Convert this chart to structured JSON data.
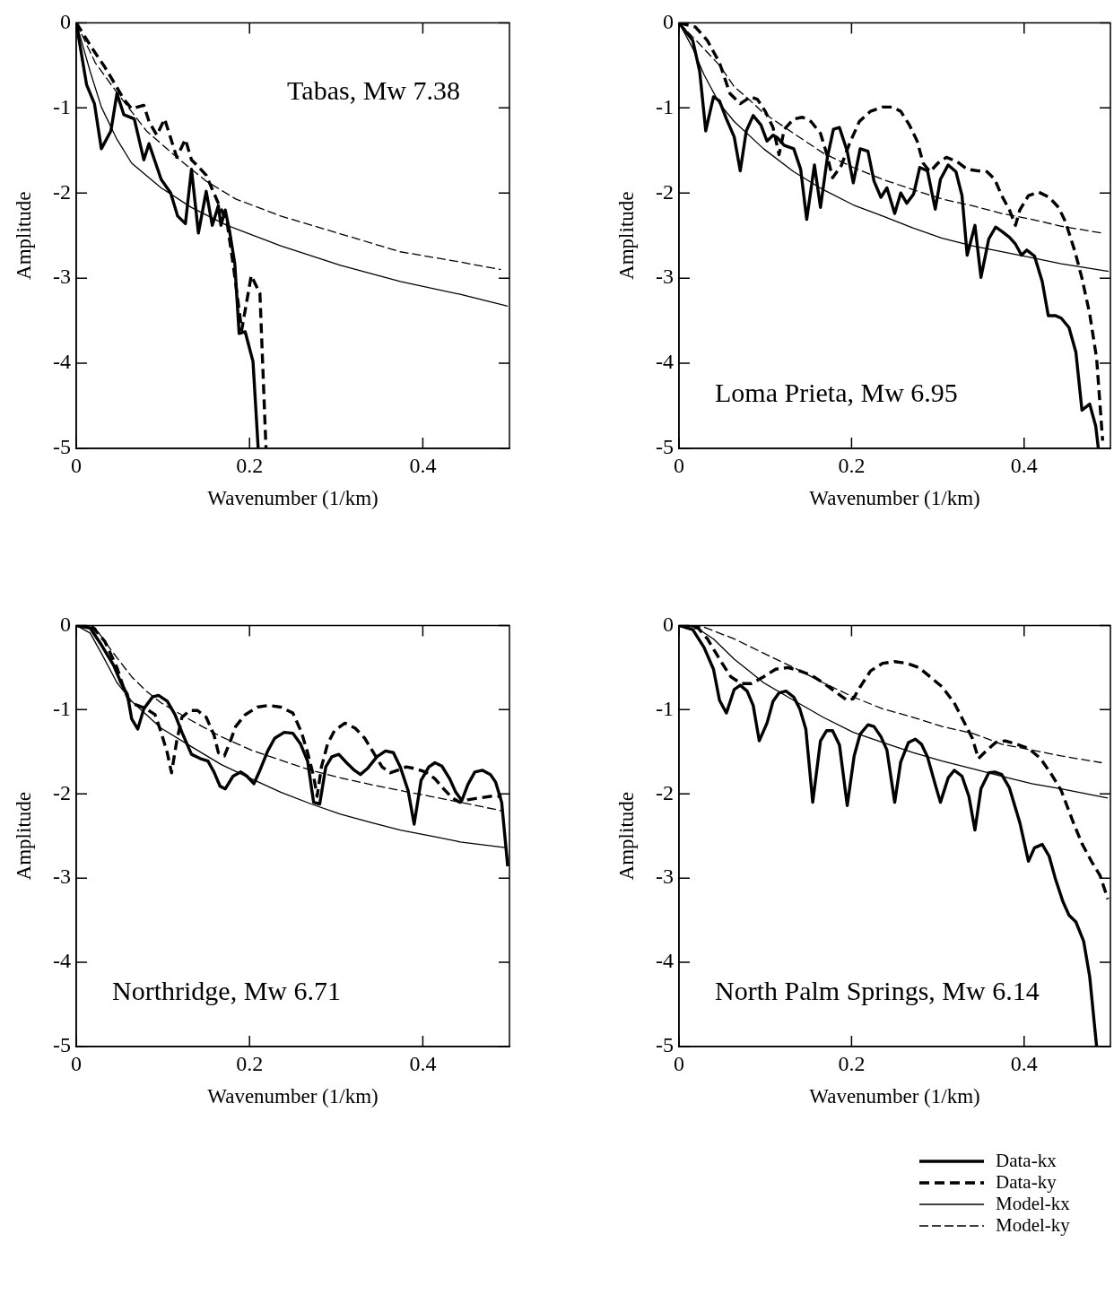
{
  "chart_data": [
    {
      "type": "line",
      "title": "Tabas, Mw 7.38",
      "xlabel": "Wavenumber (1/km)",
      "ylabel": "Amplitude",
      "xlim": [
        0,
        0.5
      ],
      "xticks": [
        0,
        0.2,
        0.4
      ],
      "ylim": [
        -5,
        0
      ],
      "yticks": [
        0,
        -1,
        -2,
        -3,
        -4,
        -5
      ],
      "marker": "none",
      "series": [
        {
          "color": "#000000",
          "line_style": "solid",
          "x": [
            0,
            0.012,
            0.021,
            0.029,
            0.04,
            0.047,
            0.055,
            0.067,
            0.078,
            0.084,
            0.098,
            0.109,
            0.117,
            0.126,
            0.133,
            0.141,
            0.15,
            0.157,
            0.164,
            0.167,
            0.172,
            0.177,
            0.183,
            0.188,
            0.195,
            0.204,
            0.21
          ],
          "values": [
            0,
            -0.73,
            -0.95,
            -1.48,
            -1.27,
            -0.83,
            -1.08,
            -1.13,
            -1.61,
            -1.42,
            -1.84,
            -2.0,
            -2.27,
            -2.36,
            -1.72,
            -2.47,
            -1.98,
            -2.38,
            -2.15,
            -2.38,
            -2.2,
            -2.45,
            -2.83,
            -3.65,
            -3.63,
            -3.98,
            -5
          ]
        },
        {
          "color": "#000000",
          "line_style": "dashed",
          "x": [
            0,
            0.019,
            0.033,
            0.047,
            0.055,
            0.064,
            0.078,
            0.084,
            0.093,
            0.102,
            0.116,
            0.126,
            0.133,
            0.14,
            0.15,
            0.155,
            0.164,
            0.174,
            0.181,
            0.191,
            0.202,
            0.212,
            0.219
          ],
          "values": [
            0,
            -0.31,
            -0.52,
            -0.76,
            -0.9,
            -1.01,
            -0.97,
            -1.16,
            -1.32,
            -1.13,
            -1.58,
            -1.37,
            -1.61,
            -1.68,
            -1.79,
            -1.91,
            -2.12,
            -2.34,
            -2.83,
            -3.61,
            -2.97,
            -3.18,
            -5
          ]
        },
        {
          "color": "#000000",
          "line_style": "solid",
          "x": [
            0,
            0.016,
            0.029,
            0.047,
            0.064,
            0.098,
            0.133,
            0.174,
            0.236,
            0.305,
            0.374,
            0.443,
            0.498
          ],
          "values": [
            0,
            -0.57,
            -0.99,
            -1.37,
            -1.65,
            -1.94,
            -2.17,
            -2.38,
            -2.62,
            -2.85,
            -3.04,
            -3.19,
            -3.33
          ]
        },
        {
          "color": "#000000",
          "line_style": "dashed",
          "x": [
            0,
            0.022,
            0.047,
            0.081,
            0.116,
            0.15,
            0.184,
            0.236,
            0.305,
            0.374,
            0.443,
            0.49
          ],
          "values": [
            0,
            -0.47,
            -0.82,
            -1.27,
            -1.58,
            -1.86,
            -2.07,
            -2.27,
            -2.48,
            -2.69,
            -2.81,
            -2.9
          ]
        }
      ]
    },
    {
      "type": "line",
      "title": "Loma Prieta, Mw 6.95",
      "xlabel": "Wavenumber (1/km)",
      "ylabel": "Amplitude",
      "xlim": [
        0,
        0.5
      ],
      "xticks": [
        0,
        0.2,
        0.4
      ],
      "ylim": [
        -5,
        0
      ],
      "yticks": [
        0,
        -1,
        -2,
        -3,
        -4,
        -5
      ],
      "marker": "none",
      "series": [
        {
          "color": "#000000",
          "line_style": "solid",
          "x": [
            0,
            0.016,
            0.024,
            0.031,
            0.04,
            0.047,
            0.055,
            0.064,
            0.071,
            0.078,
            0.086,
            0.095,
            0.102,
            0.109,
            0.114,
            0.122,
            0.133,
            0.141,
            0.148,
            0.157,
            0.164,
            0.172,
            0.179,
            0.186,
            0.195,
            0.202,
            0.21,
            0.219,
            0.226,
            0.234,
            0.241,
            0.25,
            0.257,
            0.264,
            0.272,
            0.279,
            0.288,
            0.297,
            0.303,
            0.312,
            0.321,
            0.328,
            0.334,
            0.343,
            0.35,
            0.359,
            0.367,
            0.374,
            0.383,
            0.39,
            0.397,
            0.403,
            0.412,
            0.421,
            0.428,
            0.436,
            0.443,
            0.452,
            0.46,
            0.467,
            0.476,
            0.483,
            0.486
          ],
          "values": [
            0,
            -0.21,
            -0.57,
            -1.27,
            -0.87,
            -0.92,
            -1.13,
            -1.34,
            -1.74,
            -1.27,
            -1.09,
            -1.2,
            -1.39,
            -1.32,
            -1.35,
            -1.44,
            -1.48,
            -1.72,
            -2.31,
            -1.67,
            -2.17,
            -1.58,
            -1.25,
            -1.23,
            -1.51,
            -1.88,
            -1.48,
            -1.51,
            -1.86,
            -2.05,
            -1.94,
            -2.24,
            -2.0,
            -2.12,
            -2.01,
            -1.7,
            -1.74,
            -2.19,
            -1.84,
            -1.67,
            -1.75,
            -2.03,
            -2.73,
            -2.38,
            -2.99,
            -2.54,
            -2.4,
            -2.45,
            -2.52,
            -2.6,
            -2.73,
            -2.67,
            -2.74,
            -3.04,
            -3.44,
            -3.44,
            -3.47,
            -3.58,
            -3.87,
            -4.55,
            -4.48,
            -4.74,
            -5
          ]
        },
        {
          "color": "#000000",
          "line_style": "dashed",
          "x": [
            0,
            0.019,
            0.033,
            0.047,
            0.059,
            0.071,
            0.083,
            0.091,
            0.1,
            0.109,
            0.116,
            0.122,
            0.133,
            0.143,
            0.153,
            0.164,
            0.171,
            0.178,
            0.188,
            0.198,
            0.209,
            0.222,
            0.236,
            0.247,
            0.257,
            0.267,
            0.276,
            0.283,
            0.291,
            0.3,
            0.31,
            0.322,
            0.334,
            0.347,
            0.357,
            0.366,
            0.374,
            0.383,
            0.39,
            0.395,
            0.405,
            0.417,
            0.429,
            0.44,
            0.448,
            0.459,
            0.467,
            0.476,
            0.484,
            0.491
          ],
          "values": [
            0,
            -0.05,
            -0.21,
            -0.47,
            -0.83,
            -0.95,
            -0.87,
            -0.9,
            -1.04,
            -1.23,
            -1.55,
            -1.25,
            -1.13,
            -1.11,
            -1.16,
            -1.3,
            -1.53,
            -1.82,
            -1.68,
            -1.41,
            -1.16,
            -1.04,
            -0.99,
            -0.99,
            -1.04,
            -1.2,
            -1.39,
            -1.65,
            -1.75,
            -1.65,
            -1.58,
            -1.63,
            -1.72,
            -1.74,
            -1.75,
            -1.84,
            -2.03,
            -2.2,
            -2.38,
            -2.2,
            -2.03,
            -1.99,
            -2.05,
            -2.17,
            -2.34,
            -2.69,
            -3.0,
            -3.42,
            -3.94,
            -4.91
          ]
        },
        {
          "color": "#000000",
          "line_style": "solid",
          "x": [
            0,
            0.016,
            0.029,
            0.047,
            0.064,
            0.098,
            0.133,
            0.167,
            0.202,
            0.236,
            0.271,
            0.305,
            0.34,
            0.374,
            0.409,
            0.443,
            0.498
          ],
          "values": [
            0,
            -0.3,
            -0.61,
            -0.95,
            -1.16,
            -1.48,
            -1.75,
            -1.96,
            -2.14,
            -2.27,
            -2.41,
            -2.53,
            -2.62,
            -2.69,
            -2.76,
            -2.83,
            -2.92
          ]
        },
        {
          "color": "#000000",
          "line_style": "dashed",
          "x": [
            0,
            0.022,
            0.047,
            0.064,
            0.081,
            0.098,
            0.133,
            0.167,
            0.202,
            0.236,
            0.271,
            0.305,
            0.34,
            0.374,
            0.409,
            0.443,
            0.49
          ],
          "values": [
            0,
            -0.23,
            -0.5,
            -0.75,
            -0.9,
            -1.06,
            -1.3,
            -1.53,
            -1.7,
            -1.84,
            -1.96,
            -2.07,
            -2.15,
            -2.24,
            -2.31,
            -2.39,
            -2.47
          ]
        }
      ]
    },
    {
      "type": "line",
      "title": "Northridge, Mw 6.71",
      "xlabel": "Wavenumber (1/km)",
      "ylabel": "Amplitude",
      "xlim": [
        0,
        0.5
      ],
      "xticks": [
        0,
        0.2,
        0.4
      ],
      "ylim": [
        -5,
        0
      ],
      "yticks": [
        0,
        -1,
        -2,
        -3,
        -4,
        -5
      ],
      "marker": "none",
      "series": [
        {
          "color": "#000000",
          "line_style": "solid",
          "x": [
            0,
            0.016,
            0.029,
            0.043,
            0.052,
            0.059,
            0.064,
            0.071,
            0.078,
            0.088,
            0.095,
            0.105,
            0.114,
            0.122,
            0.133,
            0.143,
            0.152,
            0.159,
            0.166,
            0.172,
            0.181,
            0.19,
            0.197,
            0.205,
            0.212,
            0.221,
            0.229,
            0.24,
            0.25,
            0.259,
            0.267,
            0.274,
            0.281,
            0.288,
            0.295,
            0.303,
            0.312,
            0.321,
            0.328,
            0.336,
            0.347,
            0.357,
            0.366,
            0.374,
            0.383,
            0.39,
            0.398,
            0.407,
            0.414,
            0.422,
            0.431,
            0.438,
            0.445,
            0.452,
            0.46,
            0.469,
            0.478,
            0.484,
            0.491,
            0.498
          ],
          "values": [
            0,
            -0.03,
            -0.23,
            -0.47,
            -0.69,
            -0.82,
            -1.11,
            -1.23,
            -0.99,
            -0.85,
            -0.83,
            -0.9,
            -1.06,
            -1.27,
            -1.53,
            -1.58,
            -1.61,
            -1.74,
            -1.91,
            -1.94,
            -1.79,
            -1.74,
            -1.79,
            -1.88,
            -1.72,
            -1.49,
            -1.34,
            -1.27,
            -1.28,
            -1.41,
            -1.61,
            -2.1,
            -2.12,
            -1.68,
            -1.56,
            -1.53,
            -1.63,
            -1.72,
            -1.77,
            -1.7,
            -1.56,
            -1.49,
            -1.51,
            -1.68,
            -1.96,
            -2.36,
            -1.84,
            -1.68,
            -1.63,
            -1.67,
            -1.82,
            -1.98,
            -2.08,
            -1.89,
            -1.74,
            -1.72,
            -1.77,
            -1.86,
            -2.1,
            -2.86
          ]
        },
        {
          "color": "#000000",
          "line_style": "dashed",
          "x": [
            0,
            0.019,
            0.033,
            0.047,
            0.055,
            0.062,
            0.071,
            0.081,
            0.091,
            0.098,
            0.105,
            0.11,
            0.116,
            0.122,
            0.131,
            0.14,
            0.15,
            0.159,
            0.164,
            0.171,
            0.178,
            0.184,
            0.195,
            0.209,
            0.222,
            0.236,
            0.25,
            0.26,
            0.267,
            0.274,
            0.278,
            0.283,
            0.29,
            0.298,
            0.31,
            0.322,
            0.333,
            0.343,
            0.353,
            0.362,
            0.371,
            0.381,
            0.391,
            0.403,
            0.414,
            0.424,
            0.434,
            0.443,
            0.452,
            0.464,
            0.478,
            0.491
          ],
          "values": [
            0,
            -0.02,
            -0.19,
            -0.5,
            -0.75,
            -0.92,
            -0.95,
            -0.99,
            -1.06,
            -1.27,
            -1.51,
            -1.75,
            -1.37,
            -1.09,
            -1.01,
            -1.01,
            -1.09,
            -1.3,
            -1.51,
            -1.55,
            -1.37,
            -1.2,
            -1.06,
            -0.97,
            -0.95,
            -0.97,
            -1.04,
            -1.27,
            -1.51,
            -1.79,
            -2.03,
            -1.68,
            -1.41,
            -1.25,
            -1.16,
            -1.22,
            -1.34,
            -1.51,
            -1.68,
            -1.75,
            -1.72,
            -1.68,
            -1.7,
            -1.74,
            -1.82,
            -1.94,
            -2.05,
            -2.1,
            -2.07,
            -2.05,
            -2.03,
            -2.03
          ]
        },
        {
          "color": "#000000",
          "line_style": "solid",
          "x": [
            0,
            0.016,
            0.029,
            0.047,
            0.064,
            0.081,
            0.098,
            0.133,
            0.167,
            0.202,
            0.236,
            0.271,
            0.305,
            0.34,
            0.374,
            0.409,
            0.443,
            0.497
          ],
          "values": [
            0,
            -0.09,
            -0.33,
            -0.68,
            -0.9,
            -1.06,
            -1.22,
            -1.44,
            -1.65,
            -1.82,
            -1.98,
            -2.12,
            -2.24,
            -2.34,
            -2.43,
            -2.5,
            -2.57,
            -2.64
          ]
        },
        {
          "color": "#000000",
          "line_style": "dashed",
          "x": [
            0,
            0.022,
            0.04,
            0.064,
            0.081,
            0.098,
            0.133,
            0.167,
            0.202,
            0.236,
            0.271,
            0.305,
            0.34,
            0.374,
            0.409,
            0.443,
            0.491
          ],
          "values": [
            0,
            -0.03,
            -0.29,
            -0.61,
            -0.78,
            -0.92,
            -1.13,
            -1.32,
            -1.48,
            -1.6,
            -1.72,
            -1.81,
            -1.89,
            -1.96,
            -2.03,
            -2.1,
            -2.2
          ]
        }
      ]
    },
    {
      "type": "line",
      "title": "North Palm Springs, Mw 6.14",
      "xlabel": "Wavenumber (1/km)",
      "ylabel": "Amplitude",
      "xlim": [
        0,
        0.5
      ],
      "xticks": [
        0,
        0.2,
        0.4
      ],
      "ylim": [
        -5,
        0
      ],
      "yticks": [
        0,
        -1,
        -2,
        -3,
        -4,
        -5
      ],
      "marker": "none",
      "legend": "bottom right",
      "series": [
        {
          "name": "Data-kx",
          "color": "#000000",
          "line_style": "solid",
          "x": [
            0,
            0.016,
            0.029,
            0.04,
            0.047,
            0.055,
            0.064,
            0.071,
            0.079,
            0.086,
            0.093,
            0.102,
            0.109,
            0.116,
            0.124,
            0.133,
            0.14,
            0.147,
            0.155,
            0.164,
            0.171,
            0.178,
            0.186,
            0.195,
            0.203,
            0.21,
            0.219,
            0.226,
            0.234,
            0.241,
            0.25,
            0.257,
            0.266,
            0.274,
            0.281,
            0.288,
            0.297,
            0.303,
            0.312,
            0.319,
            0.328,
            0.336,
            0.343,
            0.35,
            0.359,
            0.366,
            0.374,
            0.383,
            0.395,
            0.405,
            0.412,
            0.421,
            0.429,
            0.436,
            0.445,
            0.452,
            0.46,
            0.469,
            0.476,
            0.484
          ],
          "values": [
            0,
            -0.05,
            -0.26,
            -0.52,
            -0.89,
            -1.04,
            -0.76,
            -0.71,
            -0.78,
            -0.95,
            -1.37,
            -1.16,
            -0.9,
            -0.8,
            -0.78,
            -0.85,
            -0.99,
            -1.23,
            -2.1,
            -1.37,
            -1.25,
            -1.25,
            -1.42,
            -2.14,
            -1.55,
            -1.29,
            -1.18,
            -1.2,
            -1.32,
            -1.48,
            -2.1,
            -1.62,
            -1.39,
            -1.35,
            -1.41,
            -1.56,
            -1.89,
            -2.1,
            -1.81,
            -1.72,
            -1.79,
            -2.03,
            -2.43,
            -1.94,
            -1.75,
            -1.74,
            -1.77,
            -1.93,
            -2.34,
            -2.8,
            -2.64,
            -2.6,
            -2.74,
            -3.0,
            -3.28,
            -3.44,
            -3.52,
            -3.75,
            -4.17,
            -5
          ]
        },
        {
          "name": "Data-ky",
          "color": "#000000",
          "line_style": "dashed",
          "x": [
            0,
            0.022,
            0.033,
            0.047,
            0.06,
            0.072,
            0.084,
            0.098,
            0.112,
            0.126,
            0.14,
            0.153,
            0.167,
            0.183,
            0.195,
            0.202,
            0.21,
            0.222,
            0.236,
            0.25,
            0.264,
            0.278,
            0.291,
            0.305,
            0.319,
            0.331,
            0.34,
            0.347,
            0.357,
            0.367,
            0.378,
            0.391,
            0.405,
            0.419,
            0.433,
            0.443,
            0.457,
            0.467,
            0.478,
            0.488,
            0.497
          ],
          "values": [
            0,
            -0.03,
            -0.16,
            -0.4,
            -0.61,
            -0.69,
            -0.69,
            -0.61,
            -0.52,
            -0.5,
            -0.54,
            -0.59,
            -0.68,
            -0.8,
            -0.89,
            -0.87,
            -0.73,
            -0.54,
            -0.45,
            -0.43,
            -0.45,
            -0.5,
            -0.61,
            -0.73,
            -0.92,
            -1.16,
            -1.34,
            -1.58,
            -1.48,
            -1.39,
            -1.37,
            -1.41,
            -1.46,
            -1.58,
            -1.79,
            -1.96,
            -2.34,
            -2.59,
            -2.8,
            -2.97,
            -3.25
          ]
        },
        {
          "name": "Model-kx",
          "color": "#000000",
          "line_style": "solid",
          "x": [
            0,
            0.019,
            0.04,
            0.064,
            0.081,
            0.098,
            0.133,
            0.167,
            0.202,
            0.236,
            0.271,
            0.305,
            0.34,
            0.374,
            0.409,
            0.443,
            0.497
          ],
          "values": [
            0,
            -0.02,
            -0.16,
            -0.4,
            -0.54,
            -0.68,
            -0.89,
            -1.09,
            -1.27,
            -1.39,
            -1.51,
            -1.61,
            -1.7,
            -1.79,
            -1.88,
            -1.94,
            -2.05
          ]
        },
        {
          "name": "Model-ky",
          "color": "#000000",
          "line_style": "dashed",
          "x": [
            0,
            0.029,
            0.064,
            0.098,
            0.133,
            0.167,
            0.202,
            0.236,
            0.271,
            0.305,
            0.34,
            0.374,
            0.409,
            0.443,
            0.49
          ],
          "values": [
            0,
            -0.02,
            -0.16,
            -0.33,
            -0.5,
            -0.68,
            -0.85,
            -0.99,
            -1.09,
            -1.2,
            -1.28,
            -1.41,
            -1.48,
            -1.55,
            -1.63
          ]
        }
      ]
    }
  ]
}
